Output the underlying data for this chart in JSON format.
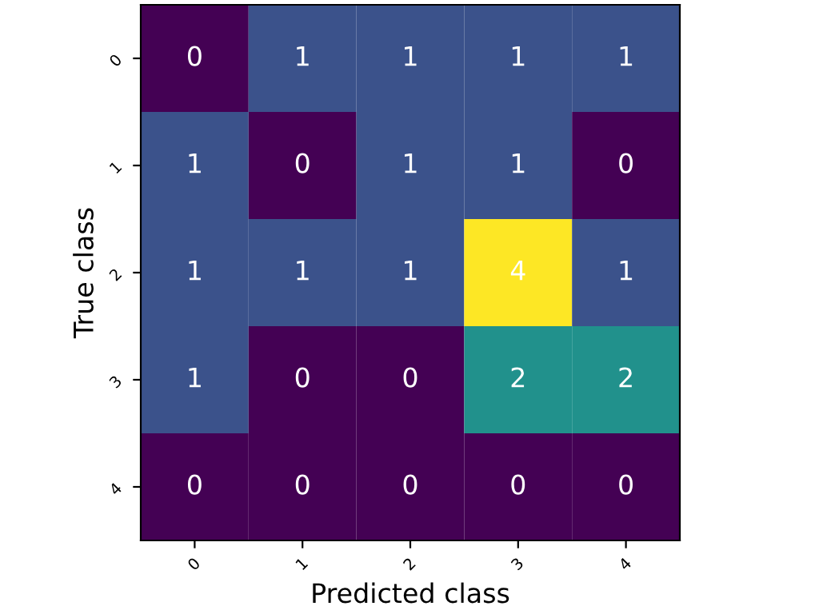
{
  "chart_data": {
    "type": "heatmap",
    "xlabel": "Predicted class",
    "ylabel": "True class",
    "categories": [
      "0",
      "1",
      "2",
      "3",
      "4"
    ],
    "y_categories": [
      "0",
      "1",
      "2",
      "3",
      "4"
    ],
    "cells": [
      [
        0,
        1,
        1,
        1,
        1
      ],
      [
        1,
        0,
        1,
        1,
        0
      ],
      [
        1,
        1,
        1,
        4,
        1
      ],
      [
        1,
        0,
        0,
        2,
        2
      ],
      [
        0,
        0,
        0,
        0,
        0
      ]
    ],
    "data_labels": true
  }
}
